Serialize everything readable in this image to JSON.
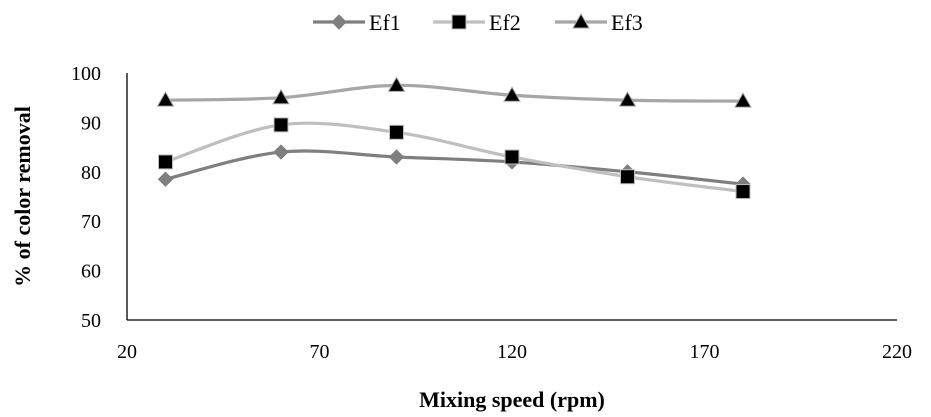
{
  "chart_data": {
    "type": "line",
    "title": "",
    "xlabel": "Mixing speed (rpm)",
    "ylabel": "% of color removal",
    "xlim": [
      20,
      220
    ],
    "ylim": [
      50,
      100
    ],
    "xticks": [
      "20",
      "70",
      "120",
      "170",
      "220"
    ],
    "yticks": [
      "50",
      "60",
      "70",
      "80",
      "90",
      "100"
    ],
    "x_tick_values": [
      20,
      70,
      120,
      170,
      220
    ],
    "y_tick_values": [
      50,
      60,
      70,
      80,
      90,
      100
    ],
    "grid": false,
    "smooth": true,
    "legend_position": "top",
    "x": [
      30,
      60,
      90,
      120,
      150,
      180
    ],
    "series": [
      {
        "name": "Ef1",
        "marker": "diamond",
        "color": "#7f7f7f",
        "values": [
          78.5,
          84,
          83,
          82,
          80,
          77.5
        ]
      },
      {
        "name": "Ef2",
        "marker": "square",
        "color": "#bfbfbf",
        "values": [
          82,
          89.5,
          88,
          83,
          79,
          76
        ]
      },
      {
        "name": "Ef3",
        "marker": "triangle",
        "color": "#a6a6a6",
        "values": [
          94.5,
          95,
          97.5,
          95.5,
          94.5,
          94.3
        ]
      }
    ]
  }
}
